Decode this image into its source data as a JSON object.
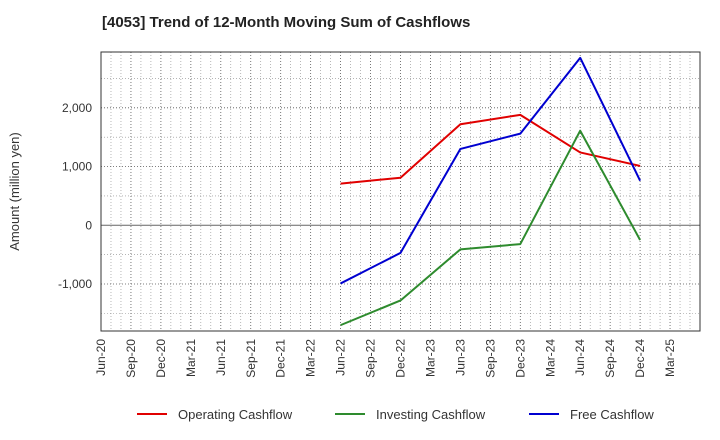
{
  "chart_data": {
    "type": "line",
    "title": "[4053]  Trend of 12-Month Moving Sum of Cashflows",
    "ylabel": "Amount (million yen)",
    "xlabel": "",
    "categories": [
      "Jun-20",
      "Sep-20",
      "Dec-20",
      "Mar-21",
      "Jun-21",
      "Sep-21",
      "Dec-21",
      "Mar-22",
      "Jun-22",
      "Sep-22",
      "Dec-22",
      "Mar-23",
      "Jun-23",
      "Sep-23",
      "Dec-23",
      "Mar-24",
      "Jun-24",
      "Sep-24",
      "Dec-24",
      "Mar-25"
    ],
    "yticks": [
      -1000,
      0,
      1000,
      2000
    ],
    "ytick_labels": [
      "-1,000",
      "0",
      "1,000",
      "2,000"
    ],
    "ylim": [
      -1800,
      2950
    ],
    "grid": true,
    "legend_position": "bottom",
    "series": [
      {
        "name": "Operating Cashflow",
        "color": "#e00000",
        "points": [
          {
            "x": "Jun-22",
            "y": 710
          },
          {
            "x": "Dec-22",
            "y": 810
          },
          {
            "x": "Jun-23",
            "y": 1720
          },
          {
            "x": "Dec-23",
            "y": 1880
          },
          {
            "x": "Jun-24",
            "y": 1240
          },
          {
            "x": "Dec-24",
            "y": 1010
          }
        ]
      },
      {
        "name": "Investing Cashflow",
        "color": "#2e8b2e",
        "points": [
          {
            "x": "Jun-22",
            "y": -1700
          },
          {
            "x": "Dec-22",
            "y": -1280
          },
          {
            "x": "Jun-23",
            "y": -410
          },
          {
            "x": "Dec-23",
            "y": -320
          },
          {
            "x": "Jun-24",
            "y": 1610
          },
          {
            "x": "Dec-24",
            "y": -250
          }
        ]
      },
      {
        "name": "Free Cashflow",
        "color": "#0000d0",
        "points": [
          {
            "x": "Jun-22",
            "y": -990
          },
          {
            "x": "Dec-22",
            "y": -470
          },
          {
            "x": "Jun-23",
            "y": 1300
          },
          {
            "x": "Dec-23",
            "y": 1560
          },
          {
            "x": "Jun-24",
            "y": 2850
          },
          {
            "x": "Dec-24",
            "y": 760
          }
        ]
      }
    ]
  }
}
